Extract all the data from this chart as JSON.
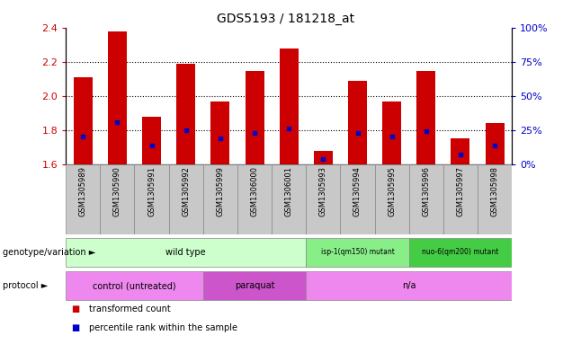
{
  "title": "GDS5193 / 181218_at",
  "samples": [
    "GSM1305989",
    "GSM1305990",
    "GSM1305991",
    "GSM1305992",
    "GSM1305999",
    "GSM1306000",
    "GSM1306001",
    "GSM1305993",
    "GSM1305994",
    "GSM1305995",
    "GSM1305996",
    "GSM1305997",
    "GSM1305998"
  ],
  "transformed_count": [
    2.11,
    2.38,
    1.88,
    2.19,
    1.97,
    2.15,
    2.28,
    1.68,
    2.09,
    1.97,
    2.15,
    1.75,
    1.84
  ],
  "percentile_rank_pct": [
    20,
    31,
    14,
    25,
    19,
    23,
    26,
    4,
    23,
    20,
    24,
    7,
    14
  ],
  "ylim": [
    1.6,
    2.4
  ],
  "y2lim": [
    0,
    100
  ],
  "yticks": [
    1.6,
    1.8,
    2.0,
    2.2,
    2.4
  ],
  "y2ticks": [
    0,
    25,
    50,
    75,
    100
  ],
  "bar_color": "#cc0000",
  "dot_color": "#0000cc",
  "bg_color": "#ffffff",
  "ylabel_color": "#cc0000",
  "y2label_color": "#0000cc",
  "tick_bg_color": "#c8c8c8",
  "genotype_groups": [
    {
      "label": "wild type",
      "start": 0,
      "end": 7,
      "color": "#ccffcc"
    },
    {
      "label": "isp-1(qm150) mutant",
      "start": 7,
      "end": 10,
      "color": "#88ee88"
    },
    {
      "label": "nuo-6(qm200) mutant",
      "start": 10,
      "end": 13,
      "color": "#44cc44"
    }
  ],
  "protocol_groups": [
    {
      "label": "control (untreated)",
      "start": 0,
      "end": 4,
      "color": "#ee88ee"
    },
    {
      "label": "paraquat",
      "start": 4,
      "end": 7,
      "color": "#cc55cc"
    },
    {
      "label": "n/a",
      "start": 7,
      "end": 13,
      "color": "#ee88ee"
    }
  ],
  "legend_items": [
    {
      "label": "transformed count",
      "color": "#cc0000"
    },
    {
      "label": "percentile rank within the sample",
      "color": "#0000cc"
    }
  ],
  "left_label": "genotype/variation",
  "left_label2": "protocol"
}
